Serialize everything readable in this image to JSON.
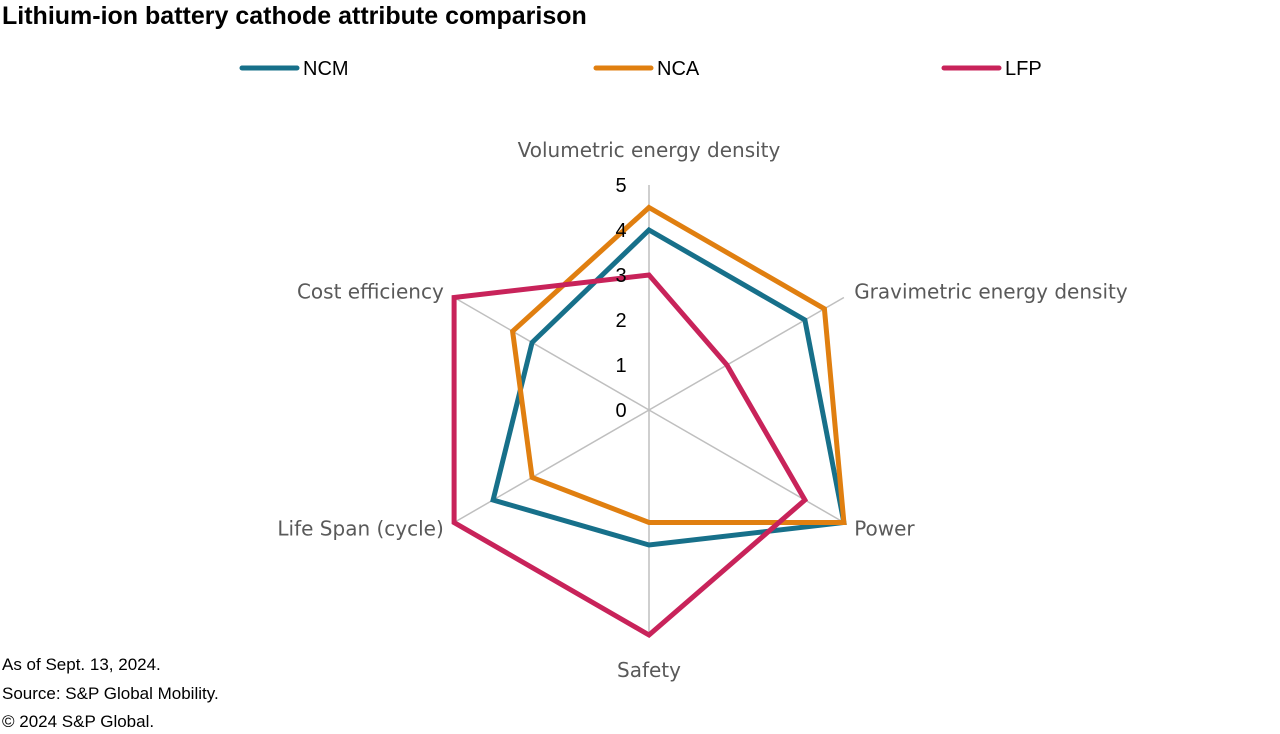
{
  "chart_data": {
    "type": "radar",
    "title": "Lithium-ion battery cathode attribute comparison",
    "axes": [
      "Volumetric energy density",
      "Gravimetric energy density",
      "Power",
      "Safety",
      "Life Span (cycle)",
      "Cost efficiency"
    ],
    "ticks": [
      "0",
      "1",
      "2",
      "3",
      "4",
      "5"
    ],
    "range": [
      0,
      5
    ],
    "grid": "spokes only",
    "legend_position": "top",
    "series": [
      {
        "name": "NCM",
        "color": "#17708a",
        "values": [
          4,
          4,
          5,
          3,
          4,
          3
        ]
      },
      {
        "name": "NCA",
        "color": "#e07f10",
        "values": [
          4.5,
          4.5,
          5,
          2.5,
          3,
          3.5
        ]
      },
      {
        "name": "LFP",
        "color": "#c8235a",
        "values": [
          3,
          2,
          4,
          5,
          5,
          5
        ]
      }
    ]
  },
  "footnotes": {
    "as_of": "As of Sept. 13, 2024.",
    "source": "Source: S&P Global Mobility.",
    "copyright": "© 2024 S&P Global."
  }
}
